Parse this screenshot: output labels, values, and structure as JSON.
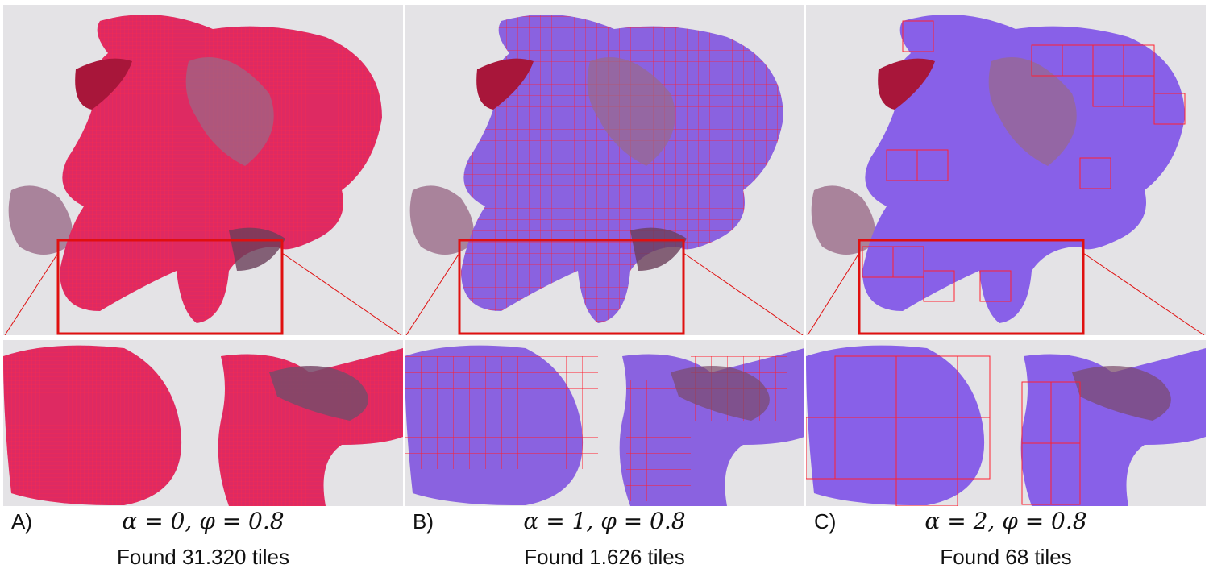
{
  "panels": [
    {
      "letter": "A)",
      "formula": "α = 0, φ = 0.8",
      "count": "Found 31.320 tiles",
      "tint": "#e0245c",
      "grid": "fine"
    },
    {
      "letter": "B)",
      "formula": "α = 1, φ = 0.8",
      "count": "Found 1.626 tiles",
      "tint": "#8a5ce6",
      "grid": "medium"
    },
    {
      "letter": "C)",
      "formula": "α = 2, φ = 0.8",
      "count": "Found 68 tiles",
      "tint": "#8460e8",
      "grid": "coarse"
    }
  ],
  "colors": {
    "tile_grid": "#ff2030",
    "zoom_box": "#e01010",
    "background_slide": "#e4e3e6",
    "tissue_unselected": "#9a6a88",
    "dark_tissue": "#a8163a"
  }
}
